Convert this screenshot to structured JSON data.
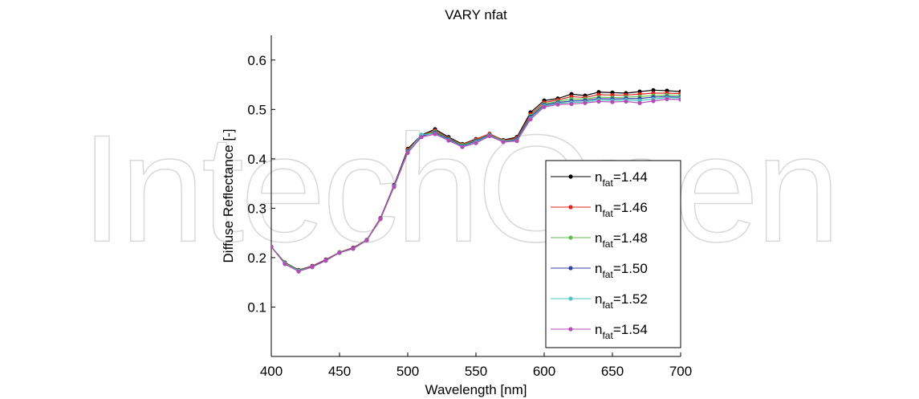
{
  "watermark": "IntechOpen",
  "chart_data": {
    "type": "line",
    "title": "VARY  nfat",
    "x_label": "Wavelength [nm]",
    "y_label": "Diffuse Reflectance [-]",
    "x": [
      400,
      410,
      420,
      430,
      440,
      450,
      460,
      470,
      480,
      490,
      500,
      510,
      520,
      530,
      540,
      550,
      560,
      570,
      580,
      590,
      600,
      610,
      620,
      630,
      640,
      650,
      660,
      670,
      680,
      690,
      700
    ],
    "xlim": [
      400,
      700
    ],
    "xticks": [
      400,
      450,
      500,
      550,
      600,
      650,
      700
    ],
    "ylim": [
      0,
      0.65
    ],
    "yticks": [
      0.1,
      0.2,
      0.3,
      0.4,
      0.5,
      0.6
    ],
    "legend_loc": "lower right",
    "series": [
      {
        "name": "nfat=1.44",
        "color": "#000000",
        "values": [
          0.222,
          0.19,
          0.175,
          0.183,
          0.196,
          0.211,
          0.22,
          0.236,
          0.28,
          0.347,
          0.42,
          0.448,
          0.46,
          0.444,
          0.43,
          0.44,
          0.45,
          0.438,
          0.444,
          0.494,
          0.518,
          0.522,
          0.531,
          0.528,
          0.535,
          0.534,
          0.533,
          0.536,
          0.539,
          0.538,
          0.536
        ]
      },
      {
        "name": "nfat=1.46",
        "color": "#e0231f",
        "values": [
          0.222,
          0.189,
          0.174,
          0.183,
          0.196,
          0.211,
          0.22,
          0.236,
          0.28,
          0.346,
          0.418,
          0.447,
          0.457,
          0.442,
          0.429,
          0.439,
          0.451,
          0.437,
          0.442,
          0.49,
          0.514,
          0.519,
          0.526,
          0.524,
          0.53,
          0.529,
          0.529,
          0.531,
          0.533,
          0.533,
          0.532
        ]
      },
      {
        "name": "nfat=1.48",
        "color": "#5cbf4a",
        "values": [
          0.222,
          0.189,
          0.174,
          0.182,
          0.195,
          0.211,
          0.219,
          0.236,
          0.279,
          0.345,
          0.416,
          0.447,
          0.455,
          0.441,
          0.428,
          0.437,
          0.449,
          0.436,
          0.44,
          0.487,
          0.511,
          0.516,
          0.521,
          0.521,
          0.525,
          0.524,
          0.525,
          0.526,
          0.528,
          0.529,
          0.528
        ]
      },
      {
        "name": "nfat=1.50",
        "color": "#3540a0",
        "values": [
          0.222,
          0.188,
          0.173,
          0.182,
          0.195,
          0.21,
          0.219,
          0.235,
          0.279,
          0.345,
          0.415,
          0.446,
          0.453,
          0.44,
          0.426,
          0.436,
          0.448,
          0.435,
          0.439,
          0.485,
          0.509,
          0.514,
          0.517,
          0.518,
          0.522,
          0.521,
          0.522,
          0.522,
          0.525,
          0.526,
          0.525
        ]
      },
      {
        "name": "nfat=1.52",
        "color": "#4fc4c4",
        "values": [
          0.222,
          0.188,
          0.173,
          0.181,
          0.194,
          0.21,
          0.218,
          0.235,
          0.278,
          0.344,
          0.413,
          0.449,
          0.451,
          0.438,
          0.425,
          0.434,
          0.447,
          0.435,
          0.437,
          0.482,
          0.507,
          0.512,
          0.514,
          0.515,
          0.519,
          0.518,
          0.519,
          0.518,
          0.521,
          0.524,
          0.523
        ]
      },
      {
        "name": "nfat=1.54",
        "color": "#b44cb4",
        "values": [
          0.222,
          0.187,
          0.172,
          0.181,
          0.194,
          0.21,
          0.218,
          0.235,
          0.278,
          0.343,
          0.412,
          0.444,
          0.45,
          0.437,
          0.424,
          0.432,
          0.446,
          0.434,
          0.436,
          0.48,
          0.505,
          0.51,
          0.511,
          0.513,
          0.516,
          0.515,
          0.516,
          0.513,
          0.517,
          0.521,
          0.52
        ]
      }
    ]
  }
}
